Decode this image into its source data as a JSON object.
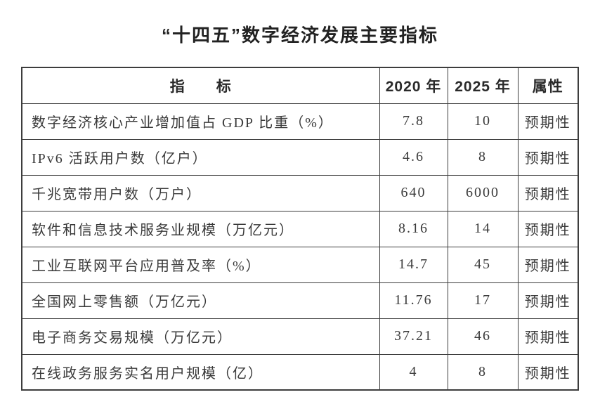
{
  "title": "“十四五”数字经济发展主要指标",
  "table": {
    "headers": {
      "indicator": "指　　标",
      "y2020": "2020 年",
      "y2025": "2025 年",
      "attr": "属性"
    },
    "rows": [
      {
        "indicator": "数字经济核心产业增加值占 GDP 比重（%）",
        "y2020": "7.8",
        "y2025": "10",
        "attr": "预期性"
      },
      {
        "indicator": "IPv6 活跃用户数（亿户）",
        "y2020": "4.6",
        "y2025": "8",
        "attr": "预期性"
      },
      {
        "indicator": "千兆宽带用户数（万户）",
        "y2020": "640",
        "y2025": "6000",
        "attr": "预期性"
      },
      {
        "indicator": "软件和信息技术服务业规模（万亿元）",
        "y2020": "8.16",
        "y2025": "14",
        "attr": "预期性"
      },
      {
        "indicator": "工业互联网平台应用普及率（%）",
        "y2020": "14.7",
        "y2025": "45",
        "attr": "预期性"
      },
      {
        "indicator": "全国网上零售额（万亿元）",
        "y2020": "11.76",
        "y2025": "17",
        "attr": "预期性"
      },
      {
        "indicator": "电子商务交易规模（万亿元）",
        "y2020": "37.21",
        "y2025": "46",
        "attr": "预期性"
      },
      {
        "indicator": "在线政务服务实名用户规模（亿）",
        "y2020": "4",
        "y2025": "8",
        "attr": "预期性"
      }
    ]
  }
}
